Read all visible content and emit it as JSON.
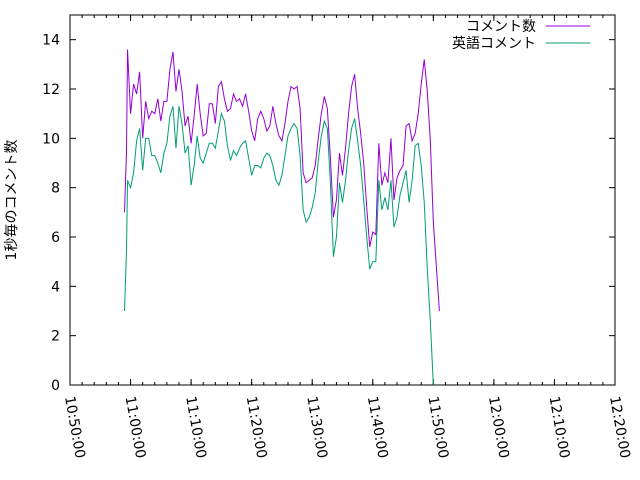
{
  "chart_data": {
    "type": "line",
    "title": "",
    "xlabel": "",
    "ylabel": "1秒毎のコメント数",
    "ylim": [
      0,
      15
    ],
    "yticks": [
      0,
      2,
      4,
      6,
      8,
      10,
      12,
      14
    ],
    "xlim": [
      "10:50:00",
      "12:20:00"
    ],
    "xticks": [
      "10:50:00",
      "11:00:00",
      "11:10:00",
      "11:20:00",
      "11:30:00",
      "11:40:00",
      "11:50:00",
      "12:00:00",
      "12:10:00",
      "12:20:00"
    ],
    "x_minor_tick_minutes": 2,
    "legend_position": "top-right",
    "grid": false,
    "series": [
      {
        "name": "コメント数",
        "color": "#9400d3",
        "points": [
          [
            "10:59:00",
            7.0
          ],
          [
            "10:59:20",
            9.5
          ],
          [
            "10:59:30",
            13.6
          ],
          [
            "11:00:00",
            11.0
          ],
          [
            "11:00:30",
            12.2
          ],
          [
            "11:01:00",
            11.8
          ],
          [
            "11:01:30",
            12.7
          ],
          [
            "11:02:00",
            10.0
          ],
          [
            "11:02:30",
            11.5
          ],
          [
            "11:03:00",
            10.8
          ],
          [
            "11:03:30",
            11.1
          ],
          [
            "11:04:00",
            11.0
          ],
          [
            "11:04:30",
            11.6
          ],
          [
            "11:05:00",
            10.7
          ],
          [
            "11:05:30",
            11.5
          ],
          [
            "11:06:00",
            11.5
          ],
          [
            "11:06:30",
            12.8
          ],
          [
            "11:07:00",
            13.5
          ],
          [
            "11:07:30",
            11.9
          ],
          [
            "11:08:00",
            12.8
          ],
          [
            "11:08:30",
            11.9
          ],
          [
            "11:09:00",
            10.5
          ],
          [
            "11:09:30",
            10.9
          ],
          [
            "11:10:00",
            9.8
          ],
          [
            "11:10:30",
            10.9
          ],
          [
            "11:11:00",
            12.2
          ],
          [
            "11:11:30",
            11.0
          ],
          [
            "11:12:00",
            10.1
          ],
          [
            "11:12:30",
            10.2
          ],
          [
            "11:13:00",
            11.4
          ],
          [
            "11:13:30",
            11.4
          ],
          [
            "11:14:00",
            10.6
          ],
          [
            "11:14:30",
            12.1
          ],
          [
            "11:15:00",
            12.3
          ],
          [
            "11:15:30",
            11.6
          ],
          [
            "11:16:00",
            11.1
          ],
          [
            "11:16:30",
            11.2
          ],
          [
            "11:17:00",
            11.8
          ],
          [
            "11:17:30",
            11.5
          ],
          [
            "11:18:00",
            11.6
          ],
          [
            "11:18:30",
            11.3
          ],
          [
            "11:19:00",
            11.8
          ],
          [
            "11:19:30",
            11.1
          ],
          [
            "11:20:00",
            10.3
          ],
          [
            "11:20:30",
            9.9
          ],
          [
            "11:21:00",
            10.8
          ],
          [
            "11:21:30",
            11.1
          ],
          [
            "11:22:00",
            10.8
          ],
          [
            "11:22:30",
            10.3
          ],
          [
            "11:23:00",
            10.5
          ],
          [
            "11:23:30",
            11.3
          ],
          [
            "11:24:00",
            10.6
          ],
          [
            "11:24:30",
            10.1
          ],
          [
            "11:25:00",
            9.9
          ],
          [
            "11:25:30",
            10.6
          ],
          [
            "11:26:00",
            11.5
          ],
          [
            "11:26:30",
            12.1
          ],
          [
            "11:27:00",
            12.0
          ],
          [
            "11:27:30",
            12.1
          ],
          [
            "11:28:00",
            11.2
          ],
          [
            "11:28:30",
            8.6
          ],
          [
            "11:29:00",
            8.2
          ],
          [
            "11:29:30",
            8.3
          ],
          [
            "11:30:00",
            8.4
          ],
          [
            "11:30:30",
            8.9
          ],
          [
            "11:31:00",
            10.0
          ],
          [
            "11:31:30",
            11.0
          ],
          [
            "11:32:00",
            11.7
          ],
          [
            "11:32:30",
            11.2
          ],
          [
            "11:33:00",
            9.2
          ],
          [
            "11:33:30",
            6.8
          ],
          [
            "11:34:00",
            7.5
          ],
          [
            "11:34:30",
            9.4
          ],
          [
            "11:35:00",
            8.5
          ],
          [
            "11:35:30",
            9.6
          ],
          [
            "11:36:00",
            11.0
          ],
          [
            "11:36:30",
            12.1
          ],
          [
            "11:37:00",
            12.6
          ],
          [
            "11:37:30",
            11.2
          ],
          [
            "11:38:00",
            10.2
          ],
          [
            "11:38:30",
            9.0
          ],
          [
            "11:39:00",
            7.2
          ],
          [
            "11:39:30",
            5.6
          ],
          [
            "11:40:00",
            6.2
          ],
          [
            "11:40:30",
            6.1
          ],
          [
            "11:41:00",
            9.8
          ],
          [
            "11:41:30",
            8.1
          ],
          [
            "11:42:00",
            8.6
          ],
          [
            "11:42:30",
            8.2
          ],
          [
            "11:43:00",
            10.0
          ],
          [
            "11:43:30",
            7.5
          ],
          [
            "11:44:00",
            8.4
          ],
          [
            "11:44:30",
            8.7
          ],
          [
            "11:45:00",
            8.9
          ],
          [
            "11:45:30",
            10.5
          ],
          [
            "11:46:00",
            10.6
          ],
          [
            "11:46:30",
            9.9
          ],
          [
            "11:47:00",
            10.2
          ],
          [
            "11:47:30",
            11.0
          ],
          [
            "11:48:00",
            12.2
          ],
          [
            "11:48:30",
            13.2
          ],
          [
            "11:49:00",
            11.9
          ],
          [
            "11:49:30",
            9.9
          ],
          [
            "11:50:00",
            6.6
          ],
          [
            "11:50:30",
            4.8
          ],
          [
            "11:51:00",
            3.0
          ]
        ]
      },
      {
        "name": "英語コメント",
        "color": "#009e73",
        "points": [
          [
            "10:59:00",
            3.0
          ],
          [
            "10:59:20",
            5.5
          ],
          [
            "10:59:30",
            8.3
          ],
          [
            "11:00:00",
            8.0
          ],
          [
            "11:00:30",
            8.6
          ],
          [
            "11:01:00",
            9.9
          ],
          [
            "11:01:30",
            10.4
          ],
          [
            "11:02:00",
            8.7
          ],
          [
            "11:02:30",
            10.0
          ],
          [
            "11:03:00",
            10.0
          ],
          [
            "11:03:30",
            9.3
          ],
          [
            "11:04:00",
            9.3
          ],
          [
            "11:04:30",
            9.0
          ],
          [
            "11:05:00",
            8.6
          ],
          [
            "11:05:30",
            9.4
          ],
          [
            "11:06:00",
            9.8
          ],
          [
            "11:06:30",
            10.9
          ],
          [
            "11:07:00",
            11.3
          ],
          [
            "11:07:30",
            9.6
          ],
          [
            "11:08:00",
            11.3
          ],
          [
            "11:08:30",
            10.6
          ],
          [
            "11:09:00",
            9.4
          ],
          [
            "11:09:30",
            9.7
          ],
          [
            "11:10:00",
            8.1
          ],
          [
            "11:10:30",
            8.9
          ],
          [
            "11:11:00",
            10.1
          ],
          [
            "11:11:30",
            9.2
          ],
          [
            "11:12:00",
            9.0
          ],
          [
            "11:12:30",
            9.4
          ],
          [
            "11:13:00",
            9.8
          ],
          [
            "11:13:30",
            9.8
          ],
          [
            "11:14:00",
            9.6
          ],
          [
            "11:14:30",
            10.3
          ],
          [
            "11:15:00",
            11.0
          ],
          [
            "11:15:30",
            10.7
          ],
          [
            "11:16:00",
            9.7
          ],
          [
            "11:16:30",
            9.1
          ],
          [
            "11:17:00",
            9.5
          ],
          [
            "11:17:30",
            9.3
          ],
          [
            "11:18:00",
            9.6
          ],
          [
            "11:18:30",
            9.8
          ],
          [
            "11:19:00",
            9.9
          ],
          [
            "11:19:30",
            9.2
          ],
          [
            "11:20:00",
            8.5
          ],
          [
            "11:20:30",
            8.9
          ],
          [
            "11:21:00",
            8.9
          ],
          [
            "11:21:30",
            8.8
          ],
          [
            "11:22:00",
            9.2
          ],
          [
            "11:22:30",
            9.4
          ],
          [
            "11:23:00",
            9.3
          ],
          [
            "11:23:30",
            8.9
          ],
          [
            "11:24:00",
            8.3
          ],
          [
            "11:24:30",
            8.1
          ],
          [
            "11:25:00",
            8.5
          ],
          [
            "11:25:30",
            9.3
          ],
          [
            "11:26:00",
            10.1
          ],
          [
            "11:26:30",
            10.4
          ],
          [
            "11:27:00",
            10.6
          ],
          [
            "11:27:30",
            10.4
          ],
          [
            "11:28:00",
            9.3
          ],
          [
            "11:28:30",
            7.1
          ],
          [
            "11:29:00",
            6.6
          ],
          [
            "11:29:30",
            6.8
          ],
          [
            "11:30:00",
            7.2
          ],
          [
            "11:30:30",
            7.8
          ],
          [
            "11:31:00",
            9.1
          ],
          [
            "11:31:30",
            10.1
          ],
          [
            "11:32:00",
            10.7
          ],
          [
            "11:32:30",
            10.4
          ],
          [
            "11:33:00",
            8.2
          ],
          [
            "11:33:30",
            5.2
          ],
          [
            "11:34:00",
            6.0
          ],
          [
            "11:34:30",
            8.2
          ],
          [
            "11:35:00",
            7.4
          ],
          [
            "11:35:30",
            8.3
          ],
          [
            "11:36:00",
            9.5
          ],
          [
            "11:36:30",
            10.4
          ],
          [
            "11:37:00",
            10.8
          ],
          [
            "11:37:30",
            9.9
          ],
          [
            "11:38:00",
            8.9
          ],
          [
            "11:38:30",
            7.5
          ],
          [
            "11:39:00",
            6.0
          ],
          [
            "11:39:30",
            4.7
          ],
          [
            "11:40:00",
            5.0
          ],
          [
            "11:40:30",
            5.0
          ],
          [
            "11:41:00",
            8.3
          ],
          [
            "11:41:30",
            7.1
          ],
          [
            "11:42:00",
            7.6
          ],
          [
            "11:42:30",
            7.1
          ],
          [
            "11:43:00",
            8.3
          ],
          [
            "11:43:30",
            6.4
          ],
          [
            "11:44:00",
            6.8
          ],
          [
            "11:44:30",
            7.7
          ],
          [
            "11:45:00",
            8.2
          ],
          [
            "11:45:30",
            8.7
          ],
          [
            "11:46:00",
            7.4
          ],
          [
            "11:46:30",
            8.3
          ],
          [
            "11:47:00",
            9.7
          ],
          [
            "11:47:30",
            9.8
          ],
          [
            "11:48:00",
            8.9
          ],
          [
            "11:48:30",
            7.4
          ],
          [
            "11:49:00",
            4.7
          ],
          [
            "11:49:30",
            2.6
          ],
          [
            "11:50:00",
            0.0
          ]
        ]
      }
    ]
  }
}
